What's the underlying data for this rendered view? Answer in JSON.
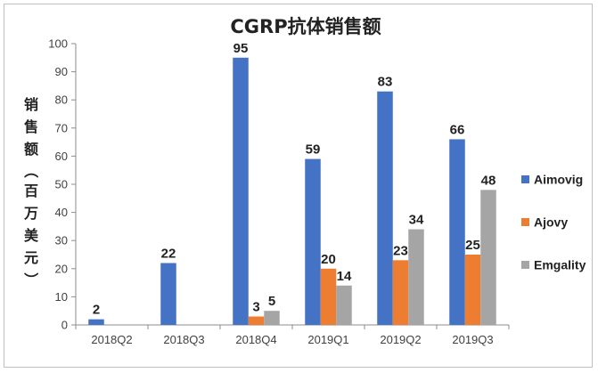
{
  "chart_data": {
    "type": "bar",
    "title": "CGRP抗体销售额",
    "ylabel": "销售额（百万美元）",
    "xlabel": "",
    "categories": [
      "2018Q2",
      "2018Q3",
      "2018Q4",
      "2019Q1",
      "2019Q2",
      "2019Q3"
    ],
    "ylim": [
      0,
      100
    ],
    "yticks": [
      0,
      10,
      20,
      30,
      40,
      50,
      60,
      70,
      80,
      90,
      100
    ],
    "grid": false,
    "legend_position": "right",
    "series": [
      {
        "name": "Aimovig",
        "color": "#4472C4",
        "values": [
          2,
          22,
          95,
          59,
          83,
          66
        ]
      },
      {
        "name": "Ajovy",
        "color": "#ED7D31",
        "values": [
          null,
          null,
          3,
          20,
          23,
          25
        ]
      },
      {
        "name": "Emgality",
        "color": "#A5A5A5",
        "values": [
          null,
          null,
          5,
          14,
          34,
          48
        ]
      }
    ]
  }
}
